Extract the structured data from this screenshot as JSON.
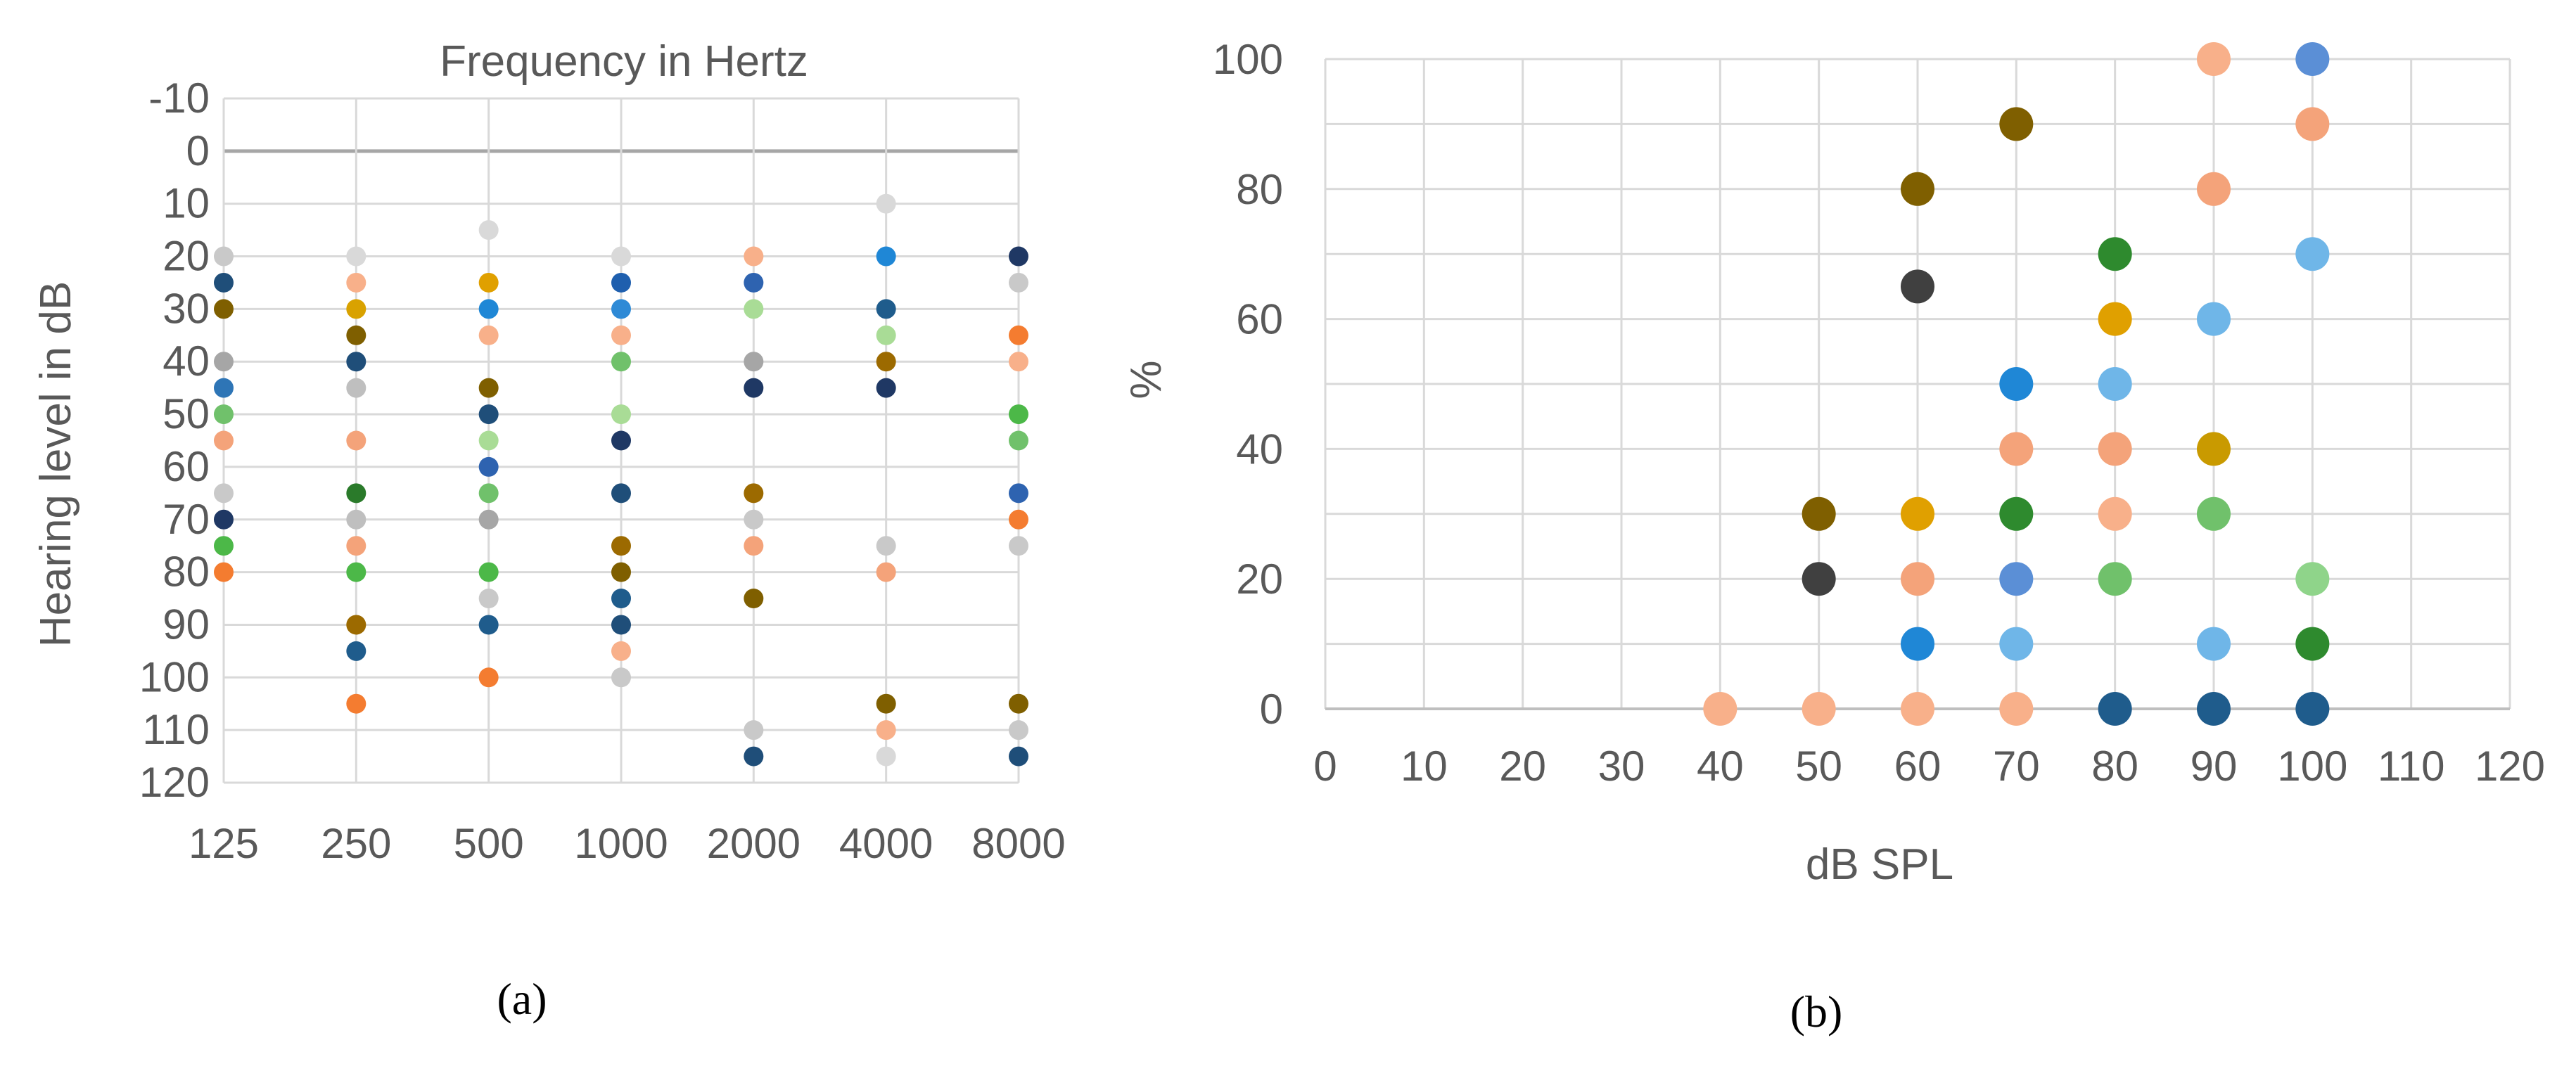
{
  "chart_data": [
    {
      "panel_label": "(a)",
      "type": "scatter",
      "title": "Frequency in Hertz",
      "xlabel": "",
      "ylabel": "Hearing level in dB",
      "x_categories": [
        "125",
        "250",
        "500",
        "1000",
        "2000",
        "4000",
        "8000"
      ],
      "y_ticks": [
        "-10",
        "0",
        "10",
        "20",
        "30",
        "40",
        "50",
        "60",
        "70",
        "80",
        "90",
        "100",
        "110",
        "120"
      ],
      "ylim": [
        -10,
        120
      ],
      "y_inverted": true,
      "grid": "vertical and horizontal, light grey; dark zero line",
      "points": [
        {
          "x": "125",
          "y": 20,
          "color": "#c9c9c9"
        },
        {
          "x": "125",
          "y": 25,
          "color": "#1f4e79"
        },
        {
          "x": "125",
          "y": 30,
          "color": "#7f5f00"
        },
        {
          "x": "125",
          "y": 40,
          "color": "#a6a6a6"
        },
        {
          "x": "125",
          "y": 45,
          "color": "#2e75b6"
        },
        {
          "x": "125",
          "y": 50,
          "color": "#70c16b"
        },
        {
          "x": "125",
          "y": 55,
          "color": "#f4a37a"
        },
        {
          "x": "125",
          "y": 65,
          "color": "#c9c9c9"
        },
        {
          "x": "125",
          "y": 70,
          "color": "#1f3864"
        },
        {
          "x": "125",
          "y": 75,
          "color": "#4cb848"
        },
        {
          "x": "125",
          "y": 80,
          "color": "#f47c30"
        },
        {
          "x": "250",
          "y": 20,
          "color": "#d9d9d9"
        },
        {
          "x": "250",
          "y": 25,
          "color": "#f8b08a"
        },
        {
          "x": "250",
          "y": 30,
          "color": "#d9a200"
        },
        {
          "x": "250",
          "y": 35,
          "color": "#7f5f00"
        },
        {
          "x": "250",
          "y": 40,
          "color": "#1f4e79"
        },
        {
          "x": "250",
          "y": 45,
          "color": "#bfbfbf"
        },
        {
          "x": "250",
          "y": 55,
          "color": "#f4a37a"
        },
        {
          "x": "250",
          "y": 65,
          "color": "#2a7a2a"
        },
        {
          "x": "250",
          "y": 70,
          "color": "#bfbfbf"
        },
        {
          "x": "250",
          "y": 75,
          "color": "#f4a37a"
        },
        {
          "x": "250",
          "y": 80,
          "color": "#4cb848"
        },
        {
          "x": "250",
          "y": 90,
          "color": "#9c6a00"
        },
        {
          "x": "250",
          "y": 95,
          "color": "#1f5c8c"
        },
        {
          "x": "250",
          "y": 105,
          "color": "#f47c30"
        },
        {
          "x": "500",
          "y": 15,
          "color": "#d9d9d9"
        },
        {
          "x": "500",
          "y": 25,
          "color": "#e0a000"
        },
        {
          "x": "500",
          "y": 30,
          "color": "#1f87d6"
        },
        {
          "x": "500",
          "y": 35,
          "color": "#f8b08a"
        },
        {
          "x": "500",
          "y": 45,
          "color": "#7f5f00"
        },
        {
          "x": "500",
          "y": 50,
          "color": "#1f4e79"
        },
        {
          "x": "500",
          "y": 55,
          "color": "#a9dc96"
        },
        {
          "x": "500",
          "y": 60,
          "color": "#2e63b0"
        },
        {
          "x": "500",
          "y": 65,
          "color": "#70c16b"
        },
        {
          "x": "500",
          "y": 70,
          "color": "#a6a6a6"
        },
        {
          "x": "500",
          "y": 80,
          "color": "#4cb848"
        },
        {
          "x": "500",
          "y": 85,
          "color": "#c9c9c9"
        },
        {
          "x": "500",
          "y": 90,
          "color": "#1f5c8c"
        },
        {
          "x": "500",
          "y": 100,
          "color": "#f47c30"
        },
        {
          "x": "1000",
          "y": 20,
          "color": "#d9d9d9"
        },
        {
          "x": "1000",
          "y": 25,
          "color": "#1f5fae"
        },
        {
          "x": "1000",
          "y": 30,
          "color": "#2e8ad6"
        },
        {
          "x": "1000",
          "y": 35,
          "color": "#f8b08a"
        },
        {
          "x": "1000",
          "y": 40,
          "color": "#70c16b"
        },
        {
          "x": "1000",
          "y": 50,
          "color": "#a9dc96"
        },
        {
          "x": "1000",
          "y": 55,
          "color": "#1f3864"
        },
        {
          "x": "1000",
          "y": 65,
          "color": "#1f4e79"
        },
        {
          "x": "1000",
          "y": 75,
          "color": "#9c6a00"
        },
        {
          "x": "1000",
          "y": 80,
          "color": "#7f5f00"
        },
        {
          "x": "1000",
          "y": 85,
          "color": "#1f5c8c"
        },
        {
          "x": "1000",
          "y": 90,
          "color": "#1f4e79"
        },
        {
          "x": "1000",
          "y": 95,
          "color": "#f8b08a"
        },
        {
          "x": "1000",
          "y": 100,
          "color": "#c9c9c9"
        },
        {
          "x": "2000",
          "y": 20,
          "color": "#f8b08a"
        },
        {
          "x": "2000",
          "y": 25,
          "color": "#2e63b0"
        },
        {
          "x": "2000",
          "y": 30,
          "color": "#a9dc96"
        },
        {
          "x": "2000",
          "y": 40,
          "color": "#a6a6a6"
        },
        {
          "x": "2000",
          "y": 45,
          "color": "#1f3864"
        },
        {
          "x": "2000",
          "y": 65,
          "color": "#9c6a00"
        },
        {
          "x": "2000",
          "y": 70,
          "color": "#c9c9c9"
        },
        {
          "x": "2000",
          "y": 75,
          "color": "#f4a37a"
        },
        {
          "x": "2000",
          "y": 85,
          "color": "#7f5f00"
        },
        {
          "x": "2000",
          "y": 110,
          "color": "#c9c9c9"
        },
        {
          "x": "2000",
          "y": 115,
          "color": "#1f4e79"
        },
        {
          "x": "4000",
          "y": 10,
          "color": "#d9d9d9"
        },
        {
          "x": "4000",
          "y": 20,
          "color": "#1f87d6"
        },
        {
          "x": "4000",
          "y": 30,
          "color": "#1f5c8c"
        },
        {
          "x": "4000",
          "y": 35,
          "color": "#a9dc96"
        },
        {
          "x": "4000",
          "y": 40,
          "color": "#9c6a00"
        },
        {
          "x": "4000",
          "y": 45,
          "color": "#1f3864"
        },
        {
          "x": "4000",
          "y": 75,
          "color": "#c9c9c9"
        },
        {
          "x": "4000",
          "y": 80,
          "color": "#f4a37a"
        },
        {
          "x": "4000",
          "y": 105,
          "color": "#7f5f00"
        },
        {
          "x": "4000",
          "y": 110,
          "color": "#f8b08a"
        },
        {
          "x": "4000",
          "y": 115,
          "color": "#d9d9d9"
        },
        {
          "x": "8000",
          "y": 20,
          "color": "#1f3864"
        },
        {
          "x": "8000",
          "y": 25,
          "color": "#c9c9c9"
        },
        {
          "x": "8000",
          "y": 35,
          "color": "#f47c30"
        },
        {
          "x": "8000",
          "y": 40,
          "color": "#f8b08a"
        },
        {
          "x": "8000",
          "y": 50,
          "color": "#4cb848"
        },
        {
          "x": "8000",
          "y": 55,
          "color": "#70c16b"
        },
        {
          "x": "8000",
          "y": 65,
          "color": "#2e63b0"
        },
        {
          "x": "8000",
          "y": 70,
          "color": "#f47c30"
        },
        {
          "x": "8000",
          "y": 75,
          "color": "#c9c9c9"
        },
        {
          "x": "8000",
          "y": 105,
          "color": "#7f5f00"
        },
        {
          "x": "8000",
          "y": 110,
          "color": "#c9c9c9"
        },
        {
          "x": "8000",
          "y": 115,
          "color": "#1f4e79"
        }
      ]
    },
    {
      "panel_label": "(b)",
      "type": "scatter",
      "title": "",
      "xlabel": "dB SPL",
      "ylabel": "%",
      "x_ticks": [
        "0",
        "10",
        "20",
        "30",
        "40",
        "50",
        "60",
        "70",
        "80",
        "90",
        "100",
        "110",
        "120"
      ],
      "y_ticks": [
        "0",
        "20",
        "40",
        "60",
        "80",
        "100"
      ],
      "xlim": [
        0,
        120
      ],
      "ylim": [
        0,
        100
      ],
      "grid": "vertical every 10, horizontal every 10",
      "points": [
        {
          "x": 40,
          "y": 0,
          "color": "#f8b08a"
        },
        {
          "x": 50,
          "y": 0,
          "color": "#f8b08a"
        },
        {
          "x": 50,
          "y": 20,
          "color": "#404040"
        },
        {
          "x": 50,
          "y": 30,
          "color": "#7f5f00"
        },
        {
          "x": 60,
          "y": 0,
          "color": "#f8b08a"
        },
        {
          "x": 60,
          "y": 10,
          "color": "#1f87d6"
        },
        {
          "x": 60,
          "y": 20,
          "color": "#f4a37a"
        },
        {
          "x": 60,
          "y": 30,
          "color": "#e0a000"
        },
        {
          "x": 60,
          "y": 65,
          "color": "#404040"
        },
        {
          "x": 60,
          "y": 80,
          "color": "#7f5f00"
        },
        {
          "x": 70,
          "y": 0,
          "color": "#f8b08a"
        },
        {
          "x": 70,
          "y": 10,
          "color": "#6fb6e8"
        },
        {
          "x": 70,
          "y": 20,
          "color": "#5b8fd6"
        },
        {
          "x": 70,
          "y": 30,
          "color": "#2e8a2e"
        },
        {
          "x": 70,
          "y": 40,
          "color": "#f4a37a"
        },
        {
          "x": 70,
          "y": 50,
          "color": "#1f87d6"
        },
        {
          "x": 70,
          "y": 90,
          "color": "#7f5f00"
        },
        {
          "x": 80,
          "y": 0,
          "color": "#1f5c8c"
        },
        {
          "x": 80,
          "y": 20,
          "color": "#70c16b"
        },
        {
          "x": 80,
          "y": 30,
          "color": "#f8b08a"
        },
        {
          "x": 80,
          "y": 40,
          "color": "#f4a37a"
        },
        {
          "x": 80,
          "y": 50,
          "color": "#6fb6e8"
        },
        {
          "x": 80,
          "y": 60,
          "color": "#e0a000"
        },
        {
          "x": 80,
          "y": 70,
          "color": "#2e8a2e"
        },
        {
          "x": 90,
          "y": 0,
          "color": "#1f5c8c"
        },
        {
          "x": 90,
          "y": 10,
          "color": "#6fb6e8"
        },
        {
          "x": 90,
          "y": 30,
          "color": "#70c16b"
        },
        {
          "x": 90,
          "y": 40,
          "color": "#c99a00"
        },
        {
          "x": 90,
          "y": 60,
          "color": "#6fb6e8"
        },
        {
          "x": 90,
          "y": 80,
          "color": "#f4a37a"
        },
        {
          "x": 90,
          "y": 100,
          "color": "#f8b08a"
        },
        {
          "x": 100,
          "y": 0,
          "color": "#1f5c8c"
        },
        {
          "x": 100,
          "y": 10,
          "color": "#2e8a2e"
        },
        {
          "x": 100,
          "y": 20,
          "color": "#8fd48a"
        },
        {
          "x": 100,
          "y": 70,
          "color": "#6fb6e8"
        },
        {
          "x": 100,
          "y": 90,
          "color": "#f4a37a"
        },
        {
          "x": 100,
          "y": 100,
          "color": "#5b8fd6"
        }
      ]
    }
  ]
}
